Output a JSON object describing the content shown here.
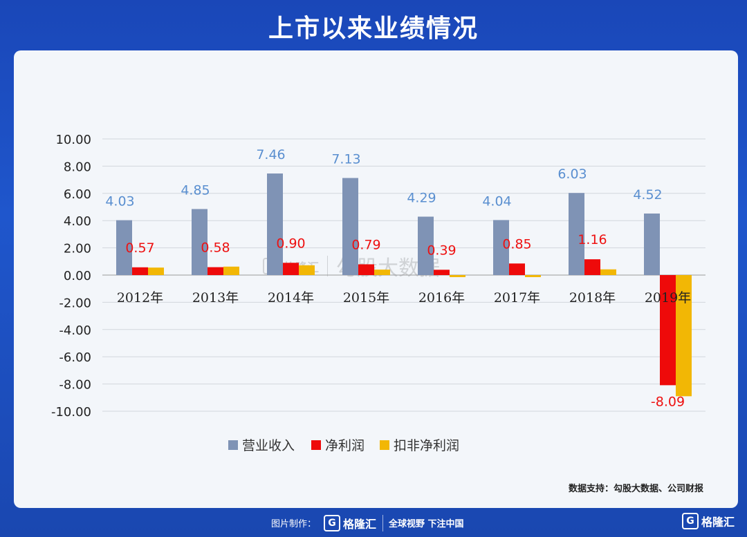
{
  "header": {
    "title": "上市以来业绩情况"
  },
  "source_text": "数据支持：勾股大数据、公司财报",
  "footer": {
    "made_by": "图片制作：",
    "brand": "格隆汇",
    "slogan": "全球视野 下注中国"
  },
  "watermark": {
    "brand": "格隆汇",
    "text": "勾股大数据"
  },
  "colors": {
    "revenue": "#7f93b5",
    "net_profit": "#ee0a0a",
    "deducted": "#f2b705",
    "revenue_label": "#5a8fd0",
    "profit_label": "#ee1111"
  },
  "chart_data": {
    "type": "bar",
    "categories": [
      "2012年",
      "2013年",
      "2014年",
      "2015年",
      "2016年",
      "2017年",
      "2018年",
      "2019年"
    ],
    "series": [
      {
        "name": "营业收入",
        "values": [
          4.03,
          4.85,
          7.46,
          7.13,
          4.29,
          4.04,
          6.03,
          4.52
        ],
        "labels": [
          "4.03",
          "4.85",
          "7.46",
          "7.13",
          "4.29",
          "4.04",
          "6.03",
          "4.52"
        ]
      },
      {
        "name": "净利润",
        "values": [
          0.57,
          0.58,
          0.9,
          0.79,
          0.39,
          0.85,
          1.16,
          -8.09
        ],
        "labels": [
          "0.57",
          "0.58",
          "0.90",
          "0.79",
          "0.39",
          "0.85",
          "1.16",
          "-8.09"
        ]
      },
      {
        "name": "扣非净利润",
        "values": [
          0.55,
          0.62,
          0.72,
          0.4,
          -0.15,
          -0.15,
          0.42,
          -8.9
        ]
      }
    ],
    "ylim": [
      -10,
      10
    ],
    "yticks": [
      "10.00",
      "8.00",
      "6.00",
      "4.00",
      "2.00",
      "0.00",
      "-2.00",
      "-4.00",
      "-6.00",
      "-8.00",
      "-10.00"
    ],
    "grid": true,
    "legend": "bottom"
  }
}
